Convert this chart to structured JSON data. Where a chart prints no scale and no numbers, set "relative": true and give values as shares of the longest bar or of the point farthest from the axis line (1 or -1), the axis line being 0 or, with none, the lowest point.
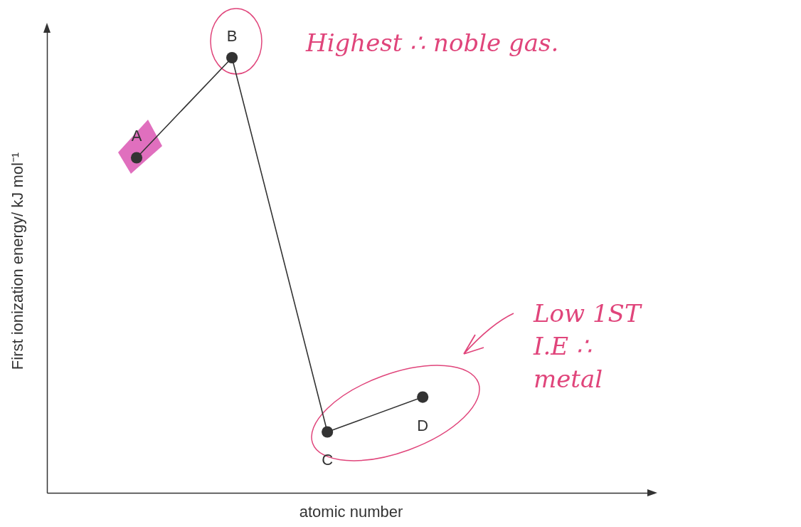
{
  "chart_data": {
    "type": "line",
    "relative": true,
    "xlabel": "atomic number",
    "ylabel": "First ionization energy/ kJ mol⁻¹",
    "categories": [
      "A",
      "B",
      "C",
      "D"
    ],
    "series": [
      {
        "color": "#333333",
        "values": [
          0.77,
          1,
          0.14,
          0.22
        ]
      }
    ],
    "marker": "circle",
    "grid": false,
    "tick_labels": false,
    "annotations": [
      "Highest ∴ noble gas.",
      "Low 1ST I.E ∴ metal"
    ]
  }
}
